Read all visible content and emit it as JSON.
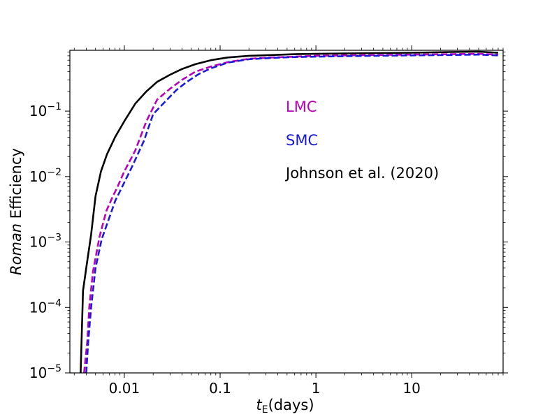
{
  "chart_data": {
    "type": "line",
    "title": "",
    "xscale": "log",
    "yscale": "log",
    "xlim": [
      0.0027,
      90
    ],
    "ylim": [
      1e-05,
      0.85
    ],
    "xlabel": {
      "symbol": "t",
      "subscript": "E",
      "unit": "(days)"
    },
    "ylabel": {
      "italic": "Roman",
      "rest": " Efficiency"
    },
    "xticks": [
      {
        "value": 0.01,
        "label": "0.01"
      },
      {
        "value": 0.1,
        "label": "0.1"
      },
      {
        "value": 1,
        "label": "1"
      },
      {
        "value": 10,
        "label": "10"
      }
    ],
    "yticks": [
      {
        "value": 1e-05,
        "base": "10",
        "exp": "−5"
      },
      {
        "value": 0.0001,
        "base": "10",
        "exp": "−4"
      },
      {
        "value": 0.001,
        "base": "10",
        "exp": "−3"
      },
      {
        "value": 0.01,
        "base": "10",
        "exp": "−2"
      },
      {
        "value": 0.1,
        "base": "10",
        "exp": "−1"
      }
    ],
    "series": [
      {
        "name": "Johnson et al. (2020)",
        "color": "#000000",
        "style": "solid",
        "x": [
          0.0035,
          0.0037,
          0.004,
          0.0045,
          0.005,
          0.0057,
          0.0066,
          0.008,
          0.01,
          0.013,
          0.017,
          0.022,
          0.03,
          0.04,
          0.055,
          0.08,
          0.12,
          0.2,
          0.35,
          0.6,
          1.0,
          2.0,
          4.0,
          10.0,
          25.0,
          50.0,
          80.0
        ],
        "values": [
          1e-05,
          0.00018,
          0.0004,
          0.0013,
          0.005,
          0.012,
          0.022,
          0.04,
          0.07,
          0.13,
          0.2,
          0.28,
          0.36,
          0.44,
          0.52,
          0.6,
          0.66,
          0.7,
          0.72,
          0.74,
          0.75,
          0.76,
          0.77,
          0.78,
          0.8,
          0.81,
          0.78
        ]
      },
      {
        "name": "LMC",
        "color": "#bb00bb",
        "style": "dashed",
        "x": [
          0.0038,
          0.0041,
          0.0043,
          0.0047,
          0.0055,
          0.0065,
          0.0075,
          0.0085,
          0.01,
          0.013,
          0.017,
          0.022,
          0.03,
          0.04,
          0.055,
          0.08,
          0.12,
          0.2,
          0.35,
          0.6,
          1.0,
          2.0,
          4.0,
          10.0,
          25.0,
          50.0,
          80.0
        ],
        "values": [
          1e-05,
          3e-05,
          0.0001,
          0.00035,
          0.0012,
          0.003,
          0.0048,
          0.007,
          0.012,
          0.025,
          0.07,
          0.15,
          0.22,
          0.3,
          0.4,
          0.48,
          0.56,
          0.63,
          0.66,
          0.68,
          0.7,
          0.71,
          0.72,
          0.73,
          0.74,
          0.75,
          0.73
        ]
      },
      {
        "name": "SMC",
        "color": "#1a1ad6",
        "style": "dashed",
        "x": [
          0.004,
          0.0042,
          0.0045,
          0.005,
          0.0058,
          0.007,
          0.008,
          0.0095,
          0.012,
          0.016,
          0.02,
          0.028,
          0.035,
          0.045,
          0.06,
          0.08,
          0.12,
          0.2,
          0.35,
          0.6,
          1.0,
          2.0,
          4.0,
          10.0,
          25.0,
          50.0,
          80.0
        ],
        "values": [
          1e-05,
          3e-05,
          0.0001,
          0.0004,
          0.0011,
          0.0024,
          0.0042,
          0.007,
          0.014,
          0.035,
          0.09,
          0.15,
          0.21,
          0.28,
          0.37,
          0.45,
          0.55,
          0.62,
          0.65,
          0.67,
          0.68,
          0.69,
          0.7,
          0.71,
          0.72,
          0.73,
          0.71
        ]
      }
    ],
    "legend_order": [
      "LMC",
      "SMC",
      "Johnson et al. (2020)"
    ],
    "legend_placement": "center-right"
  }
}
